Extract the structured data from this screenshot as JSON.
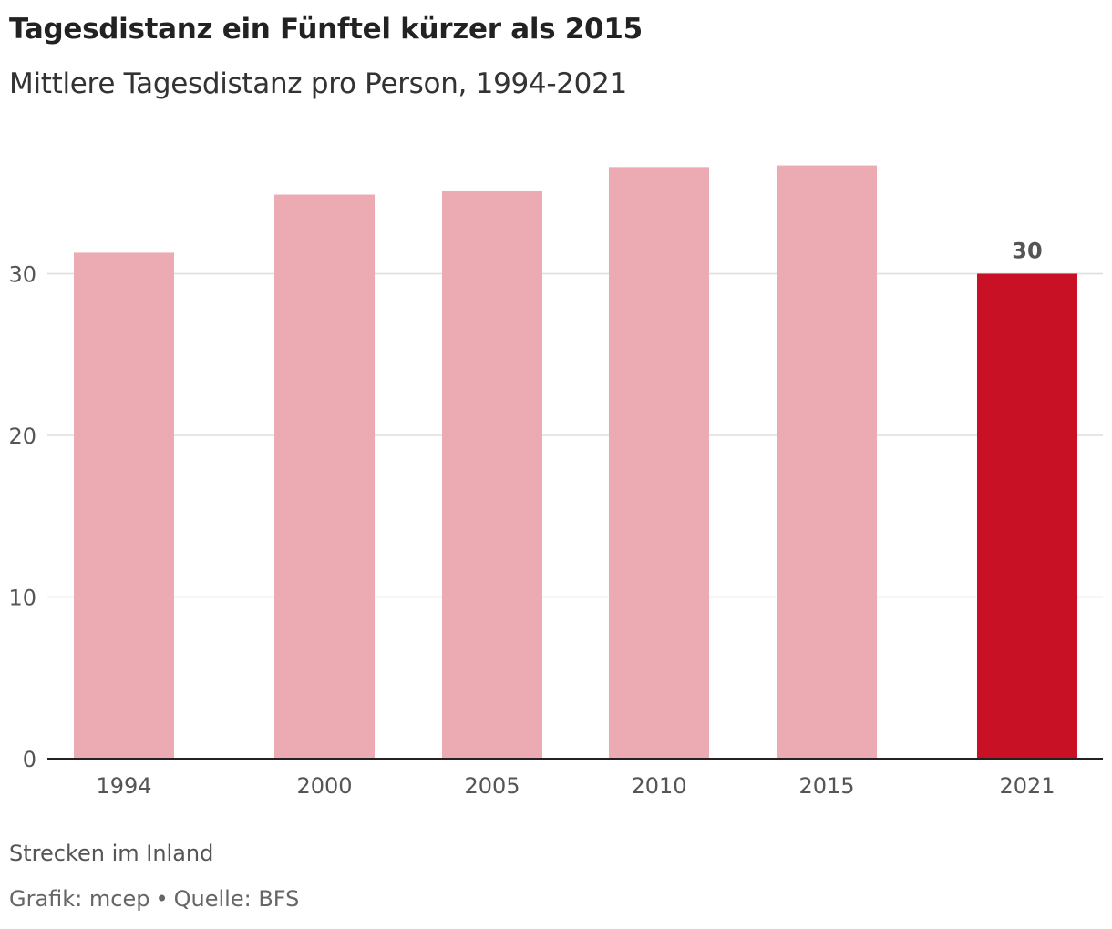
{
  "header": {
    "title": "Tagesdistanz ein Fünftel kürzer als 2015",
    "subtitle": "Mittlere Tagesdistanz pro Person, 1994-2021"
  },
  "footer": {
    "note": "Strecken im Inland",
    "credit": "Grafik: mcep",
    "separator": "•",
    "source": "Quelle: BFS"
  },
  "colors": {
    "bar": "#ecaab2",
    "highlight": "#c91126",
    "grid": "#dddddd",
    "axis": "#222222",
    "tick_text": "#555555",
    "label_text": "#555555"
  },
  "chart_data": {
    "type": "bar",
    "title": "Tagesdistanz ein Fünftel kürzer als 2015",
    "subtitle": "Mittlere Tagesdistanz pro Person, 1994-2021",
    "categories": [
      "1994",
      "2000",
      "2005",
      "2010",
      "2015",
      "2021"
    ],
    "values": [
      31.3,
      34.9,
      35.1,
      36.6,
      36.7,
      30
    ],
    "highlight_index": 5,
    "data_labels": [
      {
        "index": 5,
        "text": "30"
      }
    ],
    "ylim": [
      0,
      40
    ],
    "yticks": [
      0,
      10,
      20,
      30
    ],
    "ytick_labels": [
      "0",
      "10",
      "20",
      "30"
    ],
    "xlabel": "",
    "ylabel": "",
    "grid": true,
    "legend": "none"
  }
}
